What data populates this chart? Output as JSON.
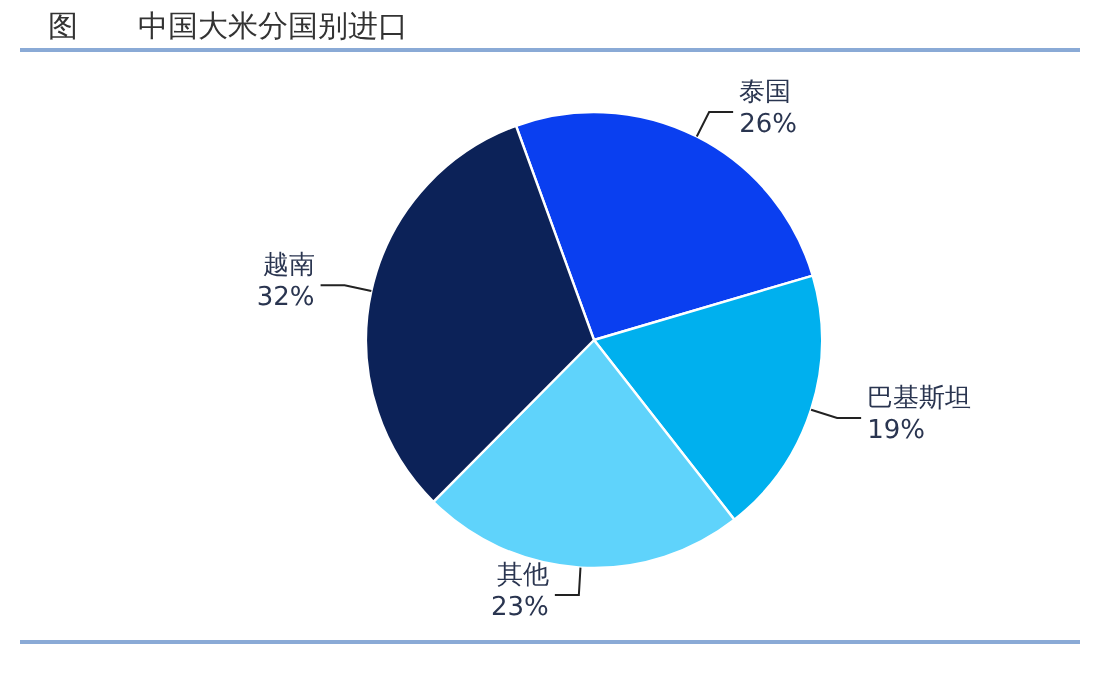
{
  "chart_data": {
    "type": "pie",
    "title": "图　　中国大米分国别进口",
    "categories": [
      "泰国",
      "巴基斯坦",
      "其他",
      "越南"
    ],
    "values": [
      26,
      19,
      23,
      32
    ],
    "value_labels": [
      "26%",
      "19%",
      "23%",
      "32%"
    ],
    "colors": [
      "#0a3ff0",
      "#00b0ee",
      "#5fd3fb",
      "#0c2258"
    ]
  }
}
